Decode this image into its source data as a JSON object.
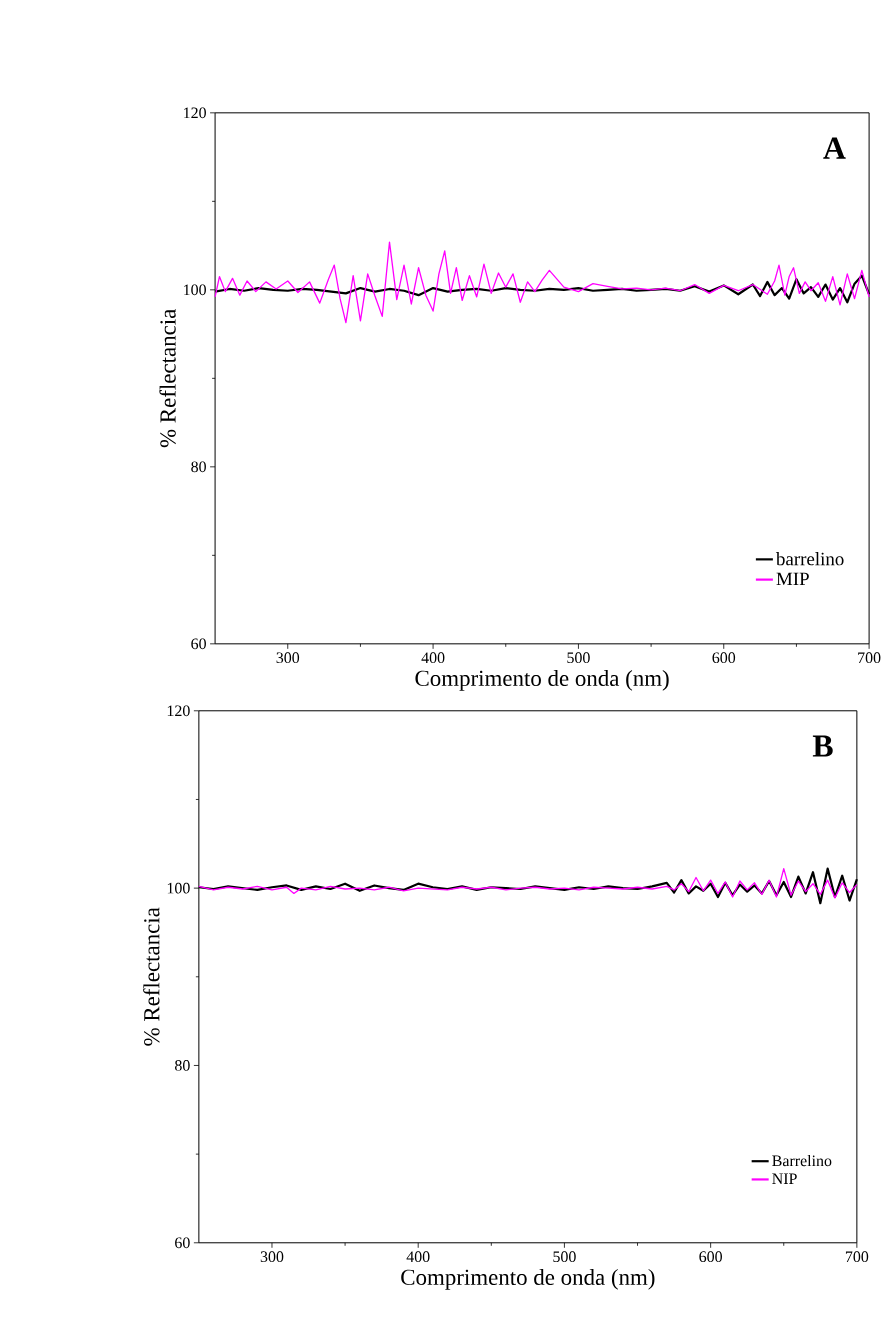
{
  "chart_data": [
    {
      "type": "line",
      "xlabel": "Comprimento de onda (nm)",
      "ylabel": "% Reflectancia",
      "annotations": [
        "A"
      ],
      "xlim": [
        250,
        700
      ],
      "ylim": [
        60,
        120
      ],
      "xticks": [
        300,
        400,
        500,
        600,
        700
      ],
      "yticks": [
        60,
        80,
        100,
        120
      ],
      "legend": "bottom right",
      "marker": "none",
      "line_style": "solid",
      "grid": false,
      "series": [
        {
          "name": "barrelino",
          "color": "#000000",
          "x": [
            250,
            260,
            270,
            280,
            290,
            300,
            310,
            320,
            330,
            340,
            350,
            360,
            370,
            380,
            390,
            400,
            410,
            420,
            430,
            440,
            450,
            460,
            470,
            480,
            490,
            500,
            510,
            520,
            530,
            540,
            550,
            560,
            570,
            580,
            590,
            600,
            610,
            620,
            625,
            630,
            635,
            640,
            645,
            650,
            655,
            660,
            665,
            670,
            675,
            680,
            685,
            690,
            695,
            700
          ],
          "values": [
            99.8,
            100.1,
            99.9,
            100.2,
            100.0,
            99.9,
            100.1,
            100.0,
            99.8,
            99.6,
            100.2,
            99.8,
            100.1,
            99.9,
            99.4,
            100.2,
            99.8,
            100.0,
            100.1,
            99.9,
            100.2,
            100.0,
            99.9,
            100.1,
            100.0,
            100.2,
            99.9,
            100.0,
            100.1,
            99.9,
            100.0,
            100.1,
            99.9,
            100.4,
            99.8,
            100.5,
            99.5,
            100.6,
            99.3,
            100.9,
            99.4,
            100.2,
            99.0,
            101.2,
            99.6,
            100.3,
            99.2,
            100.6,
            98.9,
            100.2,
            98.6,
            100.7,
            101.6,
            99.5
          ]
        },
        {
          "name": "MIP",
          "color": "#ff00ff",
          "x": [
            250,
            253,
            257,
            262,
            267,
            272,
            278,
            285,
            292,
            300,
            307,
            315,
            322,
            328,
            332,
            336,
            340,
            345,
            350,
            355,
            360,
            365,
            370,
            375,
            380,
            385,
            390,
            395,
            400,
            404,
            408,
            412,
            416,
            420,
            425,
            430,
            435,
            440,
            445,
            450,
            455,
            460,
            465,
            470,
            475,
            480,
            490,
            500,
            510,
            520,
            530,
            540,
            550,
            560,
            570,
            580,
            590,
            600,
            610,
            620,
            630,
            635,
            638,
            642,
            645,
            648,
            652,
            656,
            660,
            665,
            670,
            675,
            680,
            685,
            690,
            695,
            700
          ],
          "values": [
            99.2,
            101.5,
            99.8,
            101.3,
            99.4,
            101.0,
            99.8,
            100.9,
            100.1,
            101.0,
            99.7,
            100.9,
            98.5,
            101.2,
            102.8,
            99.0,
            96.3,
            101.6,
            96.5,
            101.8,
            99.3,
            97.0,
            105.4,
            98.9,
            102.8,
            98.4,
            102.5,
            99.4,
            97.6,
            101.8,
            104.4,
            99.6,
            102.5,
            98.8,
            101.6,
            99.2,
            102.9,
            99.6,
            101.9,
            100.3,
            101.8,
            98.6,
            100.9,
            99.8,
            101.1,
            102.2,
            100.3,
            99.8,
            100.7,
            100.4,
            100.1,
            100.2,
            100.0,
            100.2,
            99.9,
            100.6,
            99.6,
            100.5,
            99.9,
            100.6,
            99.5,
            101.0,
            102.8,
            99.4,
            101.5,
            102.5,
            99.6,
            100.9,
            99.9,
            100.8,
            98.7,
            101.5,
            98.3,
            101.8,
            99.0,
            102.2,
            99.2
          ]
        }
      ]
    },
    {
      "type": "line",
      "xlabel": "Comprimento de onda (nm)",
      "ylabel": "% Reflectancia",
      "annotations": [
        "B"
      ],
      "xlim": [
        250,
        700
      ],
      "ylim": [
        60,
        120
      ],
      "xticks": [
        300,
        400,
        500,
        600,
        700
      ],
      "yticks": [
        60,
        80,
        100,
        120
      ],
      "legend": "bottom right",
      "marker": "none",
      "line_style": "solid",
      "grid": false,
      "series": [
        {
          "name": "Barrelino",
          "color": "#000000",
          "x": [
            250,
            260,
            270,
            280,
            290,
            300,
            310,
            320,
            330,
            340,
            350,
            360,
            370,
            380,
            390,
            400,
            410,
            420,
            430,
            440,
            450,
            460,
            470,
            480,
            490,
            500,
            510,
            520,
            530,
            540,
            550,
            560,
            570,
            575,
            580,
            585,
            590,
            595,
            600,
            605,
            610,
            615,
            620,
            625,
            630,
            635,
            640,
            645,
            650,
            655,
            660,
            665,
            670,
            675,
            680,
            685,
            690,
            695,
            700
          ],
          "values": [
            100.1,
            99.9,
            100.2,
            100.0,
            99.8,
            100.1,
            100.3,
            99.8,
            100.2,
            99.9,
            100.5,
            99.7,
            100.3,
            100.0,
            99.8,
            100.5,
            100.1,
            99.9,
            100.2,
            99.8,
            100.1,
            100.0,
            99.9,
            100.2,
            100.0,
            99.8,
            100.1,
            99.9,
            100.2,
            100.0,
            99.9,
            100.2,
            100.6,
            99.5,
            100.9,
            99.4,
            100.2,
            99.7,
            100.5,
            99.0,
            100.6,
            99.2,
            100.4,
            99.6,
            100.3,
            99.4,
            100.8,
            99.2,
            100.7,
            99.0,
            101.3,
            99.4,
            101.8,
            98.3,
            102.2,
            99.0,
            101.4,
            98.6,
            101.0
          ]
        },
        {
          "name": "NIP",
          "color": "#ff00ff",
          "x": [
            250,
            260,
            270,
            280,
            290,
            300,
            310,
            315,
            320,
            330,
            340,
            350,
            360,
            370,
            380,
            390,
            400,
            410,
            420,
            430,
            440,
            450,
            460,
            470,
            480,
            490,
            500,
            510,
            520,
            530,
            540,
            550,
            560,
            570,
            575,
            580,
            585,
            590,
            595,
            600,
            605,
            610,
            615,
            620,
            625,
            630,
            635,
            640,
            645,
            650,
            655,
            660,
            665,
            670,
            675,
            680,
            685,
            690,
            695,
            700
          ],
          "values": [
            100.2,
            99.8,
            100.1,
            99.9,
            100.2,
            99.8,
            100.1,
            99.4,
            100.0,
            99.8,
            100.2,
            99.9,
            100.0,
            99.8,
            100.1,
            99.7,
            100.0,
            99.9,
            99.8,
            100.1,
            99.9,
            100.1,
            99.8,
            100.0,
            100.1,
            99.9,
            100.0,
            99.8,
            100.1,
            100.0,
            99.9,
            100.1,
            99.9,
            100.2,
            99.8,
            100.5,
            99.6,
            101.2,
            99.7,
            100.9,
            99.4,
            100.7,
            99.0,
            100.8,
            99.8,
            100.6,
            99.3,
            100.9,
            99.0,
            102.2,
            99.2,
            100.8,
            99.6,
            100.5,
            99.3,
            100.9,
            98.9,
            100.6,
            99.5,
            100.4
          ]
        }
      ]
    }
  ]
}
